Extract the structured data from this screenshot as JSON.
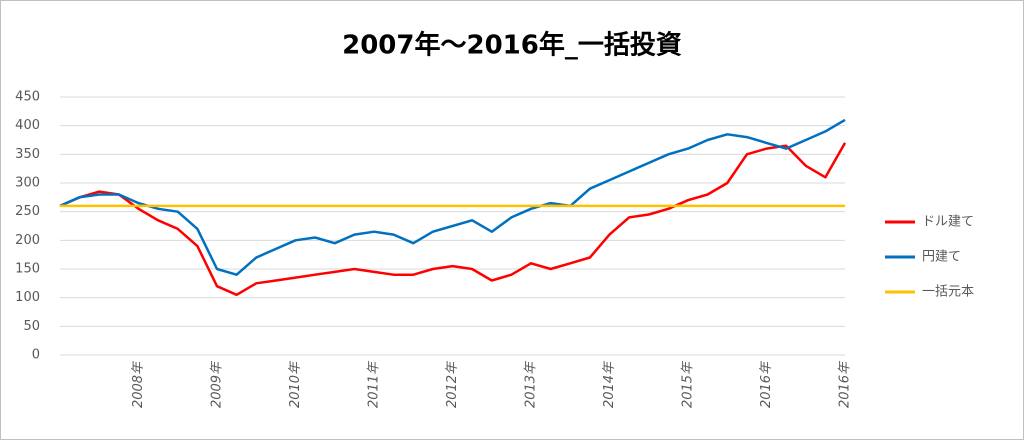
{
  "chart_data": {
    "type": "line",
    "title": "2007年〜2016年_一括投資",
    "categories": [
      null,
      null,
      null,
      null,
      "2008年",
      null,
      null,
      null,
      "2009年",
      null,
      null,
      null,
      "2010年",
      null,
      null,
      null,
      "2011年",
      null,
      null,
      null,
      "2012年",
      null,
      null,
      null,
      "2013年",
      null,
      null,
      null,
      "2014年",
      null,
      null,
      null,
      "2015年",
      null,
      null,
      null,
      "2016年",
      null,
      null,
      null,
      "2016年"
    ],
    "series": [
      {
        "name": "ドル建て",
        "color": "#ff0000",
        "values": [
          260,
          275,
          285,
          280,
          255,
          235,
          220,
          190,
          120,
          105,
          125,
          130,
          135,
          140,
          145,
          150,
          145,
          140,
          140,
          150,
          155,
          150,
          130,
          140,
          160,
          150,
          160,
          170,
          210,
          240,
          245,
          255,
          270,
          280,
          300,
          350,
          360,
          365,
          330,
          310,
          370
        ]
      },
      {
        "name": "円建て",
        "color": "#0070c0",
        "values": [
          260,
          275,
          280,
          280,
          265,
          255,
          250,
          220,
          150,
          140,
          170,
          185,
          200,
          205,
          195,
          210,
          215,
          210,
          195,
          215,
          225,
          235,
          215,
          240,
          255,
          265,
          260,
          290,
          305,
          320,
          335,
          350,
          360,
          375,
          385,
          380,
          370,
          360,
          375,
          390,
          410
        ]
      },
      {
        "name": "一括元本",
        "color": "#ffc000",
        "values": [
          260,
          260,
          260,
          260,
          260,
          260,
          260,
          260,
          260,
          260,
          260,
          260,
          260,
          260,
          260,
          260,
          260,
          260,
          260,
          260,
          260,
          260,
          260,
          260,
          260,
          260,
          260,
          260,
          260,
          260,
          260,
          260,
          260,
          260,
          260,
          260,
          260,
          260,
          260,
          260,
          260
        ]
      }
    ],
    "ylim": [
      0,
      450
    ],
    "yticks": [
      0,
      50,
      100,
      150,
      200,
      250,
      300,
      350,
      400,
      450
    ],
    "grid": true,
    "legend": "right"
  }
}
